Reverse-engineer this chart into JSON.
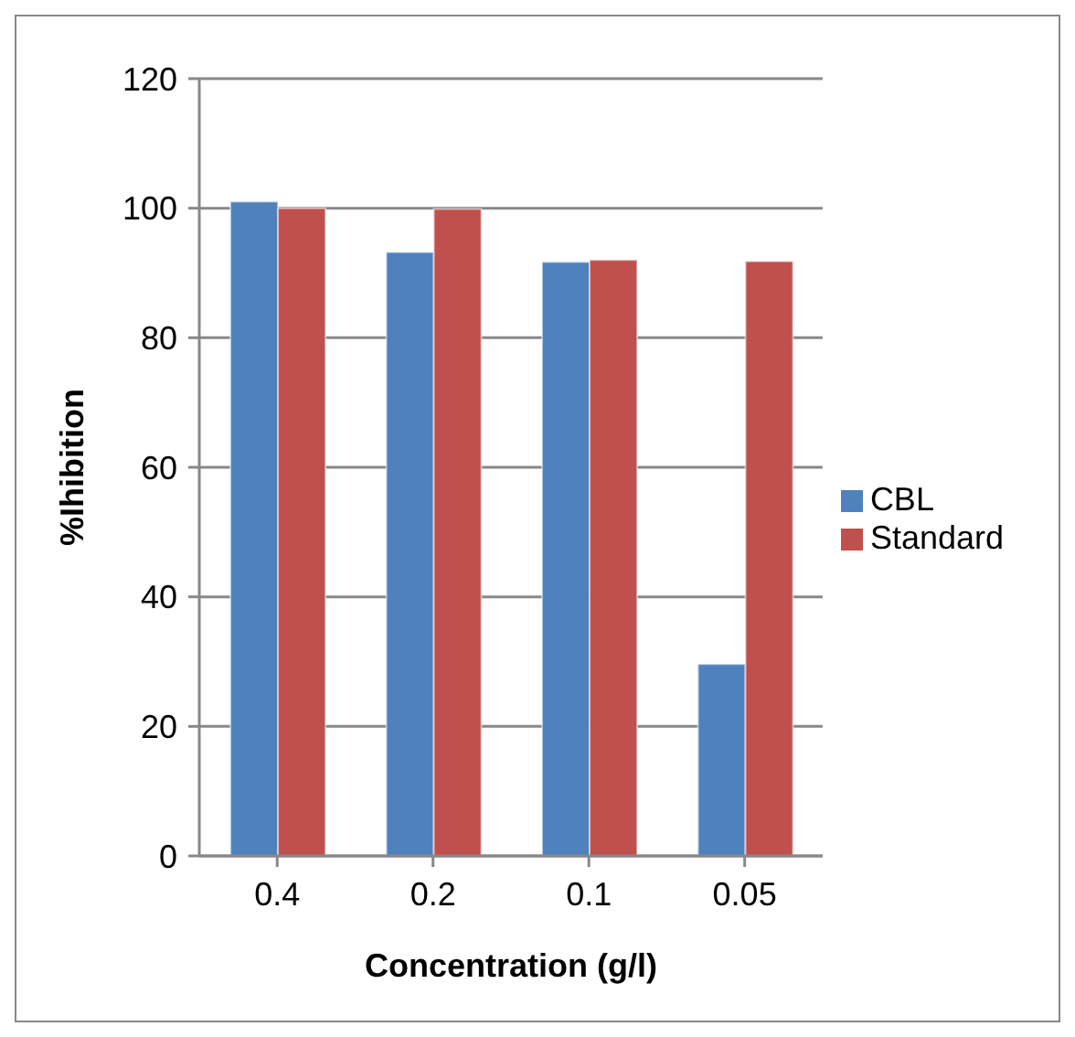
{
  "chart_data": {
    "type": "bar",
    "categories": [
      "0.4",
      "0.2",
      "0.1",
      "0.05"
    ],
    "xlabel": "Concentration (g/l)",
    "ylabel": "%Ihibition",
    "series": [
      {
        "name": "CBL",
        "color": "#4f81bd",
        "values": [
          101,
          93.2,
          91.7,
          29.6
        ]
      },
      {
        "name": "Standard",
        "color": "#c0504d",
        "values": [
          100,
          99.9,
          92,
          91.8
        ]
      }
    ],
    "ylim": [
      0,
      120
    ],
    "yticks": [
      0,
      20,
      40,
      60,
      80,
      100,
      120
    ],
    "grid": "y",
    "legend": "right"
  }
}
